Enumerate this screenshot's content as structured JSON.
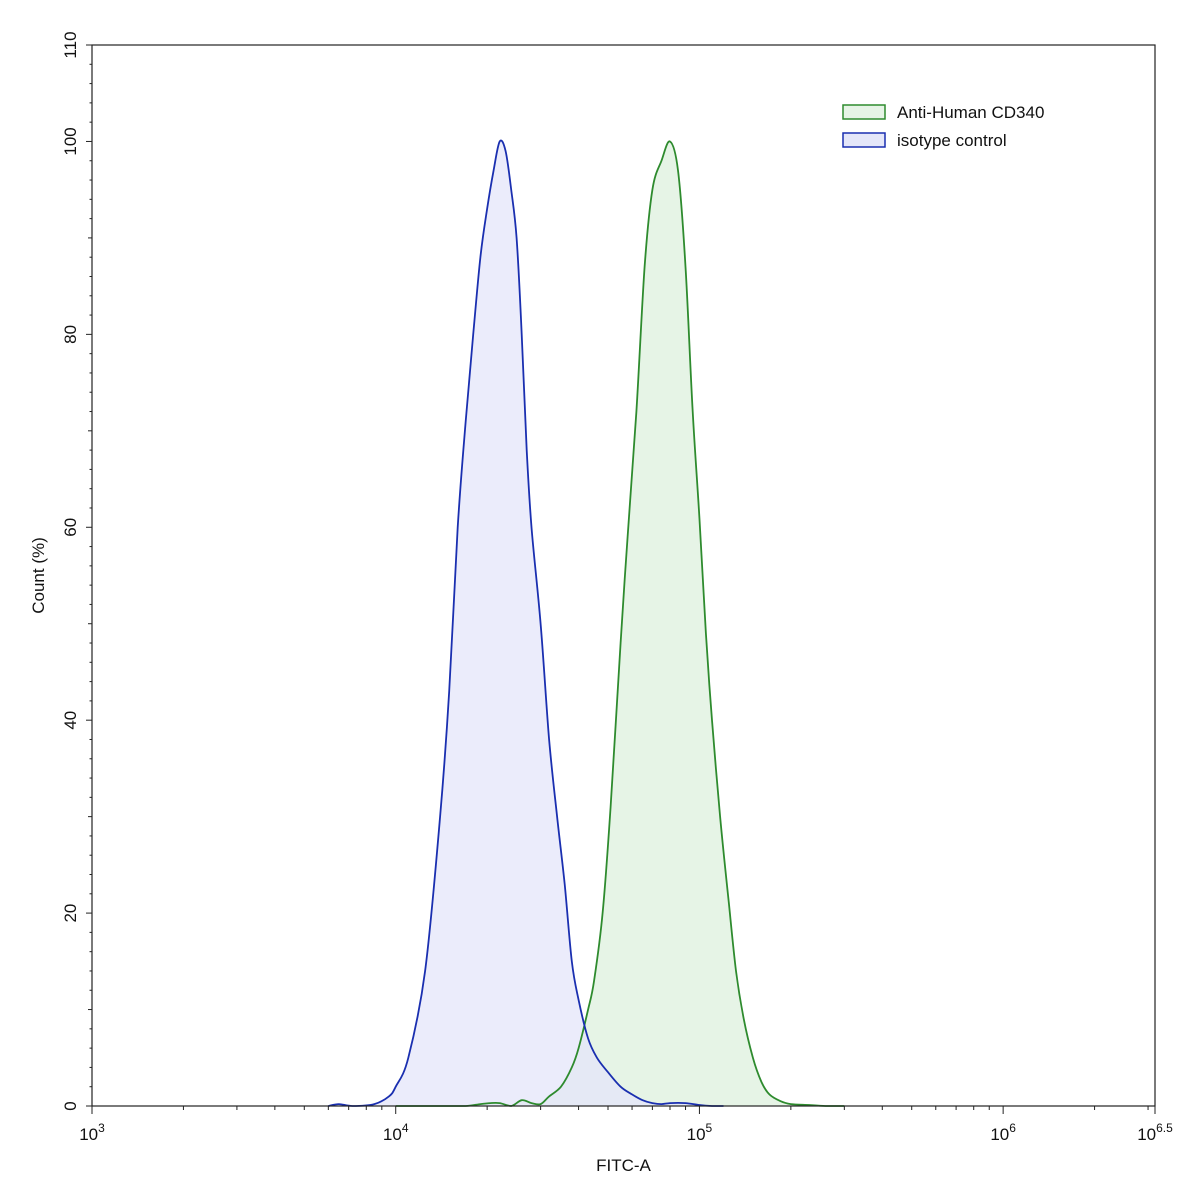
{
  "chart_data": {
    "type": "area",
    "xlabel": "FITC-A",
    "ylabel": "Count  (%)",
    "x_scale": "log10",
    "xlim": [
      1000,
      3162277.66
    ],
    "ylim": [
      0,
      110
    ],
    "grid": false,
    "legend_position": "top-right",
    "x_ticks": [
      {
        "base": "10",
        "exp": "3",
        "value": 1000
      },
      {
        "base": "10",
        "exp": "4",
        "value": 10000
      },
      {
        "base": "10",
        "exp": "5",
        "value": 100000
      },
      {
        "base": "10",
        "exp": "6",
        "value": 1000000
      },
      {
        "base": "10",
        "exp": "6.5",
        "value": 3162277.66
      }
    ],
    "y_ticks": [
      0,
      20,
      40,
      60,
      80,
      100,
      110
    ],
    "series": [
      {
        "name": "Anti-Human CD340",
        "stroke": "#2e8b2e",
        "fill": "#e6f4e6",
        "x": [
          10000,
          12500,
          15000,
          17000,
          19000,
          20500,
          22000,
          24000,
          26000,
          28000,
          30000,
          32000,
          35000,
          38000,
          40000,
          43000,
          45000,
          48000,
          51000,
          55000,
          58000,
          62000,
          66000,
          70000,
          75000,
          80000,
          85000,
          90000,
          95000,
          100000,
          105000,
          110000,
          117000,
          125000,
          132000,
          140000,
          150000,
          160000,
          170000,
          185000,
          200000,
          230000,
          260000,
          300000
        ],
        "y": [
          0,
          0,
          0,
          0,
          0.2,
          0.3,
          0.3,
          0,
          0.6,
          0.3,
          0.2,
          1,
          2,
          4,
          6,
          10,
          13,
          20,
          31,
          48,
          59,
          72,
          87,
          95,
          98,
          100,
          97,
          87,
          72,
          61,
          49,
          40,
          30,
          21,
          14,
          9,
          5,
          2.5,
          1.2,
          0.5,
          0.2,
          0.1,
          0,
          0
        ]
      },
      {
        "name": "isotype control",
        "stroke": "#1a2fb0",
        "fill": "#e4e6f9",
        "x": [
          6000,
          6500,
          7200,
          8500,
          9500,
          10000,
          11000,
          12500,
          14000,
          15000,
          16000,
          17000,
          18000,
          19000,
          20000,
          21000,
          22000,
          23000,
          24000,
          25000,
          26000,
          27000,
          28000,
          30000,
          32000,
          34000,
          36000,
          38000,
          40000,
          43000,
          46000,
          50000,
          55000,
          60000,
          65000,
          70000,
          75000,
          80000,
          90000,
          100000,
          110000,
          120000
        ],
        "y": [
          0,
          0.2,
          0,
          0.2,
          1,
          2,
          5,
          14,
          30,
          43,
          60,
          71,
          80,
          88,
          93,
          97,
          100,
          99,
          95,
          90,
          80,
          68,
          60,
          50,
          38,
          30,
          23,
          15,
          11,
          7,
          5,
          3.5,
          2,
          1.2,
          0.6,
          0.3,
          0.2,
          0.3,
          0.3,
          0.1,
          0,
          0
        ]
      }
    ]
  }
}
